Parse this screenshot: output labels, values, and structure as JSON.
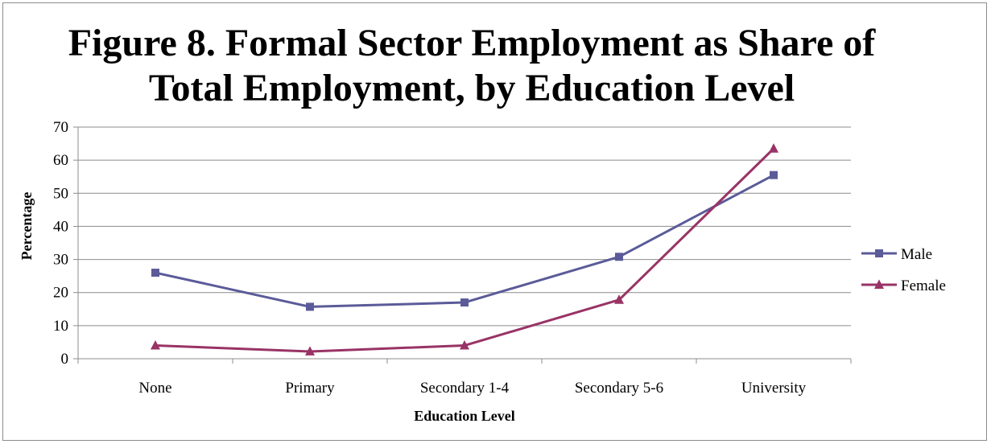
{
  "chart_data": {
    "type": "line",
    "title": "Figure 8. Formal Sector Employment as Share of Total Employment, by Education Level",
    "title_lines": [
      "Figure 8. Formal Sector Employment as Share of",
      "Total Employment, by Education Level"
    ],
    "xlabel": "Education Level",
    "ylabel": "Percentage",
    "categories": [
      "None",
      "Primary",
      "Secondary 1-4",
      "Secondary 5-6",
      "University"
    ],
    "ylim": [
      0,
      70
    ],
    "yticks": [
      0,
      10,
      20,
      30,
      40,
      50,
      60,
      70
    ],
    "grid": true,
    "legend_position": "right",
    "series": [
      {
        "name": "Male",
        "values": [
          26,
          15.7,
          17,
          30.8,
          55.5
        ],
        "color": "#5b5b99",
        "marker": "square"
      },
      {
        "name": "Female",
        "values": [
          4,
          2.2,
          4,
          17.8,
          63.5
        ],
        "color": "#993366",
        "marker": "triangle"
      }
    ]
  }
}
